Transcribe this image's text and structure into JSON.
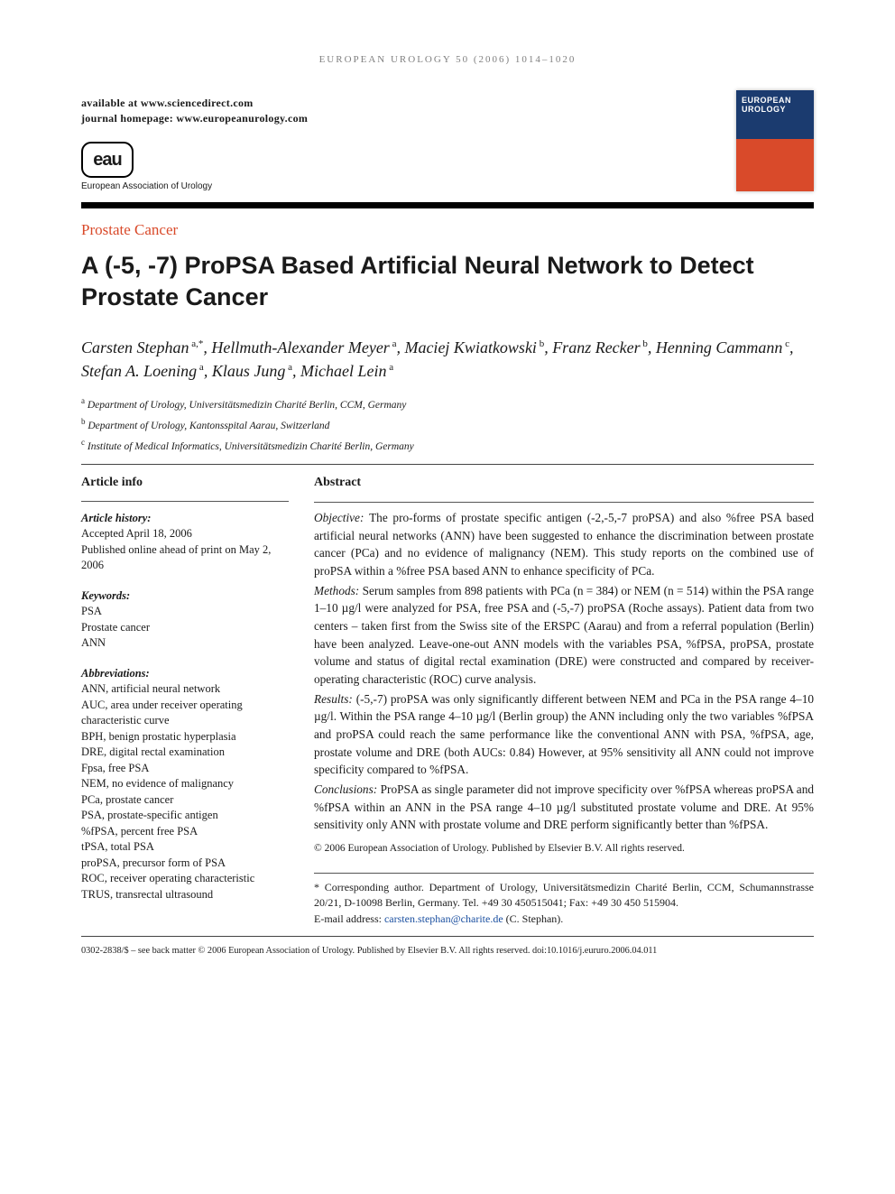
{
  "running_header": "EUROPEAN UROLOGY 50 (2006) 1014–1020",
  "availability": {
    "line1": "available at www.sciencedirect.com",
    "line2": "journal homepage: www.europeanurology.com"
  },
  "logo": {
    "mark": "eau",
    "text": "European Association of Urology"
  },
  "cover": {
    "line1": "EUROPEAN",
    "line2": "UROLOGY"
  },
  "section_label": "Prostate Cancer",
  "title": "A (-5, -7) ProPSA Based Artificial Neural Network to Detect Prostate Cancer",
  "authors_html": "Carsten Stephan<sup> a,*</sup>, Hellmuth-Alexander Meyer<sup> a</sup>, Maciej Kwiatkowski<sup> b</sup>, Franz Recker<sup> b</sup>, Henning Cammann<sup> c</sup>, Stefan A. Loening<sup> a</sup>, Klaus Jung<sup> a</sup>, Michael Lein<sup> a</sup>",
  "affiliations": [
    {
      "sup": "a",
      "text": "Department of Urology, Universitätsmedizin Charité Berlin, CCM, Germany"
    },
    {
      "sup": "b",
      "text": "Department of Urology, Kantonsspital Aarau, Switzerland"
    },
    {
      "sup": "c",
      "text": "Institute of Medical Informatics, Universitätsmedizin Charité Berlin, Germany"
    }
  ],
  "article_info": {
    "heading": "Article info",
    "history_label": "Article history:",
    "history_lines": [
      "Accepted April 18, 2006",
      "Published online ahead of print on May 2, 2006"
    ],
    "keywords_label": "Keywords:",
    "keywords": [
      "PSA",
      "Prostate cancer",
      "ANN"
    ],
    "abbrev_label": "Abbreviations:",
    "abbrev": [
      "ANN, artificial neural network",
      "AUC, area under receiver operating characteristic curve",
      "BPH, benign prostatic hyperplasia",
      "DRE, digital rectal examination",
      "Fpsa, free PSA",
      "NEM, no evidence of malignancy",
      "PCa, prostate cancer",
      "PSA, prostate-specific antigen",
      "%fPSA, percent free PSA",
      "tPSA, total PSA",
      "proPSA, precursor form of PSA",
      "ROC, receiver operating characteristic",
      "TRUS, transrectal ultrasound"
    ]
  },
  "abstract": {
    "heading": "Abstract",
    "sections": [
      {
        "label": "Objective:",
        "text": "The pro-forms of prostate specific antigen (-2,-5,-7 proPSA) and also %free PSA based artificial neural networks (ANN) have been suggested to enhance the discrimination between prostate cancer (PCa) and no evidence of malignancy (NEM). This study reports on the combined use of proPSA within a %free PSA based ANN to enhance specificity of PCa."
      },
      {
        "label": "Methods:",
        "text": "Serum samples from 898 patients with PCa (n = 384) or NEM (n = 514) within the PSA range 1–10 µg/l were analyzed for PSA, free PSA and (-5,-7) proPSA (Roche assays). Patient data from two centers – taken first from the Swiss site of the ERSPC (Aarau) and from a referral population (Berlin) have been analyzed. Leave-one-out ANN models with the variables PSA, %fPSA, proPSA, prostate volume and status of digital rectal examination (DRE) were constructed and compared by receiver-operating characteristic (ROC) curve analysis."
      },
      {
        "label": "Results:",
        "text": "(-5,-7) proPSA was only significantly different between NEM and PCa in the PSA range 4–10 µg/l. Within the PSA range 4–10 µg/l (Berlin group) the ANN including only the two variables %fPSA and proPSA could reach the same performance like the conventional ANN with PSA, %fPSA, age, prostate volume and DRE (both AUCs: 0.84) However, at 95% sensitivity all ANN could not improve specificity compared to %fPSA."
      },
      {
        "label": "Conclusions:",
        "text": "ProPSA as single parameter did not improve specificity over %fPSA whereas proPSA and %fPSA within an ANN in the PSA range 4–10 µg/l substituted prostate volume and DRE. At 95% sensitivity only ANN with prostate volume and DRE perform significantly better than %fPSA."
      }
    ],
    "copyright": "© 2006 European Association of Urology. Published by Elsevier B.V. All rights reserved."
  },
  "corresponding": {
    "text": "* Corresponding author. Department of Urology, Universitätsmedizin Charité Berlin, CCM, Schumannstrasse 20/21, D-10098 Berlin, Germany. Tel. +49 30 450515041; Fax: +49 30 450 515904.",
    "email_label": "E-mail address: ",
    "email": "carsten.stephan@charite.de",
    "email_suffix": " (C. Stephan)."
  },
  "footer": "0302-2838/$ – see back matter © 2006 European Association of Urology. Published by Elsevier B.V. All rights reserved.  doi:10.1016/j.eururo.2006.04.011"
}
